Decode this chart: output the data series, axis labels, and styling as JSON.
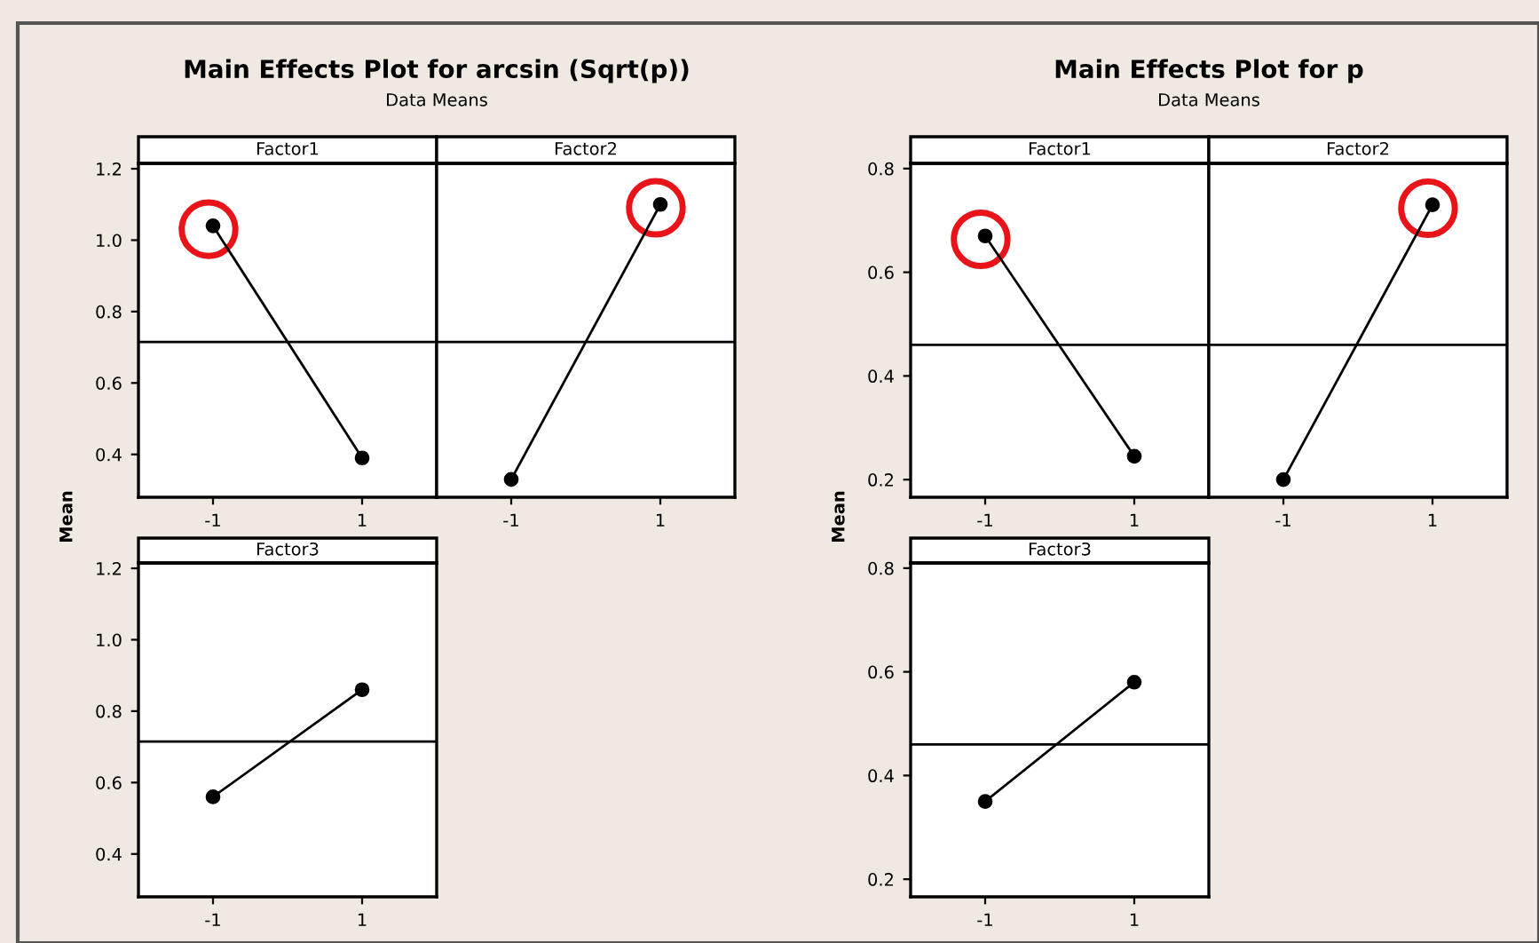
{
  "chart_data": [
    {
      "type": "line",
      "title": "Factor1",
      "annotations": [
        "Main Effects Plot for arcsin (Sqrt(p))",
        "Data Means"
      ],
      "ylabel": "Mean",
      "categories": [
        "-1",
        "1"
      ],
      "values": [
        1.04,
        0.39
      ],
      "color": "#000000",
      "marker": "circle",
      "ylim": [
        0.28,
        1.215
      ],
      "yticks": [
        0.4,
        0.6,
        0.8,
        {
          "value": 1,
          "label": "1.0"
        },
        1.2
      ],
      "ref_lines": [
        {
          "axis": "y",
          "value": 0.715,
          "color": "#000000"
        }
      ]
    },
    {
      "type": "line",
      "title": "Factor2",
      "categories": [
        "-1",
        "1"
      ],
      "values": [
        0.33,
        1.1
      ],
      "color": "#000000",
      "marker": "circle",
      "ylim": [
        0.28,
        1.215
      ],
      "tick_labels": "x",
      "ref_lines": [
        {
          "axis": "y",
          "value": 0.715,
          "color": "#000000"
        }
      ]
    },
    {
      "type": "line",
      "title": "Factor3",
      "categories": [
        "-1",
        "1"
      ],
      "values": [
        0.56,
        0.86
      ],
      "color": "#000000",
      "marker": "circle",
      "ylim": [
        0.28,
        1.215
      ],
      "yticks": [
        0.4,
        0.6,
        0.8,
        {
          "value": 1,
          "label": "1.0"
        },
        1.2
      ],
      "ref_lines": [
        {
          "axis": "y",
          "value": 0.715,
          "color": "#000000"
        }
      ]
    },
    {
      "type": "line",
      "title": "Factor1",
      "annotations": [
        "Main Effects Plot for p",
        "Data Means"
      ],
      "ylabel": "Mean",
      "categories": [
        "-1",
        "1"
      ],
      "values": [
        0.67,
        0.245
      ],
      "color": "#000000",
      "marker": "circle",
      "ylim": [
        0.166,
        0.81
      ],
      "yticks": [
        0.2,
        0.4,
        0.6,
        0.8
      ],
      "ref_lines": [
        {
          "axis": "y",
          "value": 0.46,
          "color": "#000000"
        }
      ]
    },
    {
      "type": "line",
      "title": "Factor2",
      "categories": [
        "-1",
        "1"
      ],
      "values": [
        0.2,
        0.73
      ],
      "color": "#000000",
      "marker": "circle",
      "ylim": [
        0.166,
        0.81
      ],
      "tick_labels": "x",
      "ref_lines": [
        {
          "axis": "y",
          "value": 0.46,
          "color": "#000000"
        }
      ]
    },
    {
      "type": "line",
      "title": "Factor3",
      "categories": [
        "-1",
        "1"
      ],
      "values": [
        0.35,
        0.58
      ],
      "color": "#000000",
      "marker": "circle",
      "ylim": [
        0.166,
        0.81
      ],
      "yticks": [
        0.2,
        0.4,
        0.6,
        0.8
      ],
      "ref_lines": [
        {
          "axis": "y",
          "value": 0.46,
          "color": "#000000"
        }
      ]
    }
  ]
}
